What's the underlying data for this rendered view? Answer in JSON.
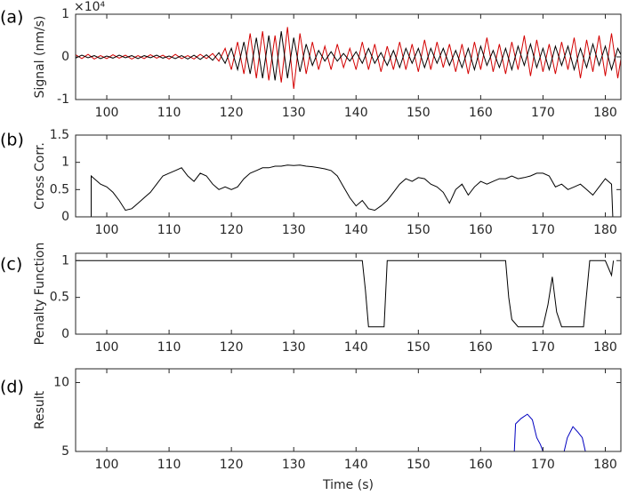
{
  "chart_data": [
    {
      "type": "line",
      "panel_label": "(a)",
      "ylabel": "Signal (nm/s)",
      "y_multiplier": "×10⁴",
      "xlim": [
        95,
        182.5
      ],
      "xticks": [
        100,
        110,
        120,
        130,
        140,
        150,
        160,
        170,
        180
      ],
      "ylim": [
        -1,
        1
      ],
      "yticks": [
        -1,
        0,
        1
      ],
      "x": [
        95,
        96,
        97,
        98,
        99,
        100,
        101,
        102,
        103,
        104,
        105,
        106,
        107,
        108,
        109,
        110,
        111,
        112,
        113,
        114,
        115,
        116,
        117,
        118,
        119,
        120,
        121,
        122,
        123,
        124,
        125,
        126,
        127,
        128,
        129,
        130,
        131,
        132,
        133,
        134,
        135,
        136,
        137,
        138,
        139,
        140,
        141,
        142,
        143,
        144,
        145,
        146,
        147,
        148,
        149,
        150,
        151,
        152,
        153,
        154,
        155,
        156,
        157,
        158,
        159,
        160,
        161,
        162,
        163,
        164,
        165,
        166,
        167,
        168,
        169,
        170,
        171,
        172,
        173,
        174,
        175,
        176,
        177,
        178,
        179,
        180,
        181,
        182,
        183
      ],
      "series": [
        {
          "color": "#d40000",
          "values": [
            0.05,
            -0.04,
            0.06,
            -0.05,
            0.03,
            -0.04,
            0.05,
            -0.03,
            0.04,
            -0.05,
            0.03,
            -0.04,
            0.05,
            -0.03,
            0.04,
            -0.05,
            0.06,
            -0.04,
            0.03,
            -0.05,
            0.06,
            -0.04,
            0.08,
            -0.1,
            0.2,
            -0.3,
            0.35,
            -0.4,
            0.55,
            -0.5,
            0.6,
            -0.55,
            0.5,
            -0.6,
            0.7,
            -0.75,
            0.55,
            -0.4,
            0.35,
            -0.3,
            0.25,
            -0.3,
            0.3,
            -0.25,
            0.2,
            -0.3,
            0.35,
            -0.3,
            0.3,
            -0.35,
            0.25,
            -0.3,
            0.35,
            -0.3,
            0.3,
            -0.35,
            0.4,
            -0.3,
            0.35,
            -0.25,
            0.3,
            -0.35,
            0.3,
            -0.4,
            0.35,
            -0.3,
            0.45,
            -0.35,
            0.3,
            -0.4,
            0.35,
            -0.3,
            0.5,
            -0.45,
            0.4,
            -0.35,
            0.3,
            -0.4,
            0.35,
            -0.3,
            0.45,
            -0.5,
            0.4,
            -0.35,
            0.5,
            -0.45,
            0.55,
            -0.5,
            0.4
          ]
        },
        {
          "color": "#000000",
          "values": [
            -0.03,
            0.04,
            -0.02,
            0.03,
            -0.04,
            0.02,
            -0.03,
            0.04,
            -0.02,
            0.03,
            -0.04,
            0.03,
            -0.02,
            0.04,
            -0.03,
            0.02,
            -0.04,
            0.03,
            -0.05,
            0.04,
            -0.06,
            0.05,
            -0.08,
            0.1,
            -0.15,
            0.2,
            -0.3,
            0.35,
            -0.4,
            0.45,
            -0.5,
            0.5,
            -0.55,
            0.6,
            -0.5,
            0.45,
            -0.35,
            0.3,
            -0.2,
            0.15,
            -0.1,
            0.12,
            -0.1,
            0.08,
            -0.1,
            0.12,
            -0.15,
            0.2,
            -0.15,
            0.1,
            -0.2,
            0.15,
            -0.25,
            0.2,
            -0.15,
            0.2,
            -0.25,
            0.2,
            -0.15,
            0.2,
            -0.2,
            0.15,
            -0.25,
            0.2,
            -0.3,
            0.25,
            -0.2,
            0.15,
            -0.25,
            0.2,
            -0.3,
            0.25,
            -0.2,
            0.3,
            -0.25,
            0.2,
            -0.3,
            0.25,
            -0.2,
            0.25,
            -0.3,
            0.2,
            -0.25,
            0.3,
            -0.2,
            0.25,
            -0.3,
            0.2,
            -0.1
          ]
        }
      ]
    },
    {
      "type": "line",
      "panel_label": "(b)",
      "ylabel": "Cross Corr.",
      "xlim": [
        95,
        182.5
      ],
      "xticks": [
        100,
        110,
        120,
        130,
        140,
        150,
        160,
        170,
        180
      ],
      "ylim": [
        0,
        1.5
      ],
      "yticks": [
        0,
        0.5,
        1,
        1.5
      ],
      "x": [
        97.5,
        97.5,
        98,
        99,
        100,
        101,
        102,
        103,
        104,
        105,
        106,
        107,
        108,
        109,
        110,
        111,
        112,
        113,
        114,
        115,
        116,
        117,
        118,
        119,
        120,
        121,
        122,
        123,
        124,
        125,
        126,
        127,
        128,
        129,
        130,
        131,
        132,
        133,
        134,
        135,
        136,
        137,
        138,
        139,
        140,
        141,
        142,
        143,
        144,
        145,
        146,
        147,
        148,
        149,
        150,
        151,
        152,
        153,
        154,
        155,
        156,
        157,
        158,
        159,
        160,
        161,
        162,
        163,
        164,
        165,
        166,
        167,
        168,
        169,
        170,
        171,
        172,
        173,
        174,
        175,
        176,
        177,
        178,
        179,
        180,
        181,
        181.2
      ],
      "series": [
        {
          "color": "#000000",
          "values": [
            0,
            0.75,
            0.7,
            0.6,
            0.55,
            0.45,
            0.3,
            0.12,
            0.15,
            0.25,
            0.35,
            0.45,
            0.6,
            0.75,
            0.8,
            0.85,
            0.9,
            0.75,
            0.65,
            0.8,
            0.75,
            0.6,
            0.5,
            0.55,
            0.5,
            0.55,
            0.7,
            0.8,
            0.85,
            0.9,
            0.9,
            0.93,
            0.93,
            0.95,
            0.94,
            0.95,
            0.93,
            0.92,
            0.9,
            0.88,
            0.85,
            0.75,
            0.55,
            0.35,
            0.2,
            0.3,
            0.15,
            0.12,
            0.2,
            0.3,
            0.45,
            0.6,
            0.7,
            0.65,
            0.72,
            0.7,
            0.6,
            0.55,
            0.45,
            0.25,
            0.5,
            0.6,
            0.4,
            0.55,
            0.65,
            0.6,
            0.65,
            0.7,
            0.7,
            0.75,
            0.7,
            0.72,
            0.75,
            0.8,
            0.8,
            0.75,
            0.55,
            0.6,
            0.5,
            0.55,
            0.6,
            0.5,
            0.4,
            0.55,
            0.7,
            0.6,
            0
          ]
        }
      ]
    },
    {
      "type": "line",
      "panel_label": "(c)",
      "ylabel": "Penalty Function",
      "xlim": [
        95,
        182.5
      ],
      "xticks": [
        100,
        110,
        120,
        130,
        140,
        150,
        160,
        170,
        180
      ],
      "ylim": [
        0,
        1.1
      ],
      "yticks": [
        0,
        0.5,
        1
      ],
      "x": [
        95,
        141,
        141.5,
        142,
        144.5,
        145,
        164,
        164.5,
        165,
        166,
        170,
        170.8,
        171.5,
        172.2,
        173,
        176.5,
        177.5,
        180,
        180.5,
        181,
        181.3
      ],
      "series": [
        {
          "color": "#000000",
          "values": [
            1,
            1,
            0.6,
            0.1,
            0.1,
            1,
            1,
            0.5,
            0.2,
            0.1,
            0.1,
            0.4,
            0.78,
            0.3,
            0.1,
            0.1,
            1,
            1,
            0.9,
            0.8,
            1
          ]
        }
      ]
    },
    {
      "type": "line",
      "panel_label": "(d)",
      "ylabel": "Result",
      "xlabel": "Time (s)",
      "xlim": [
        95,
        182.5
      ],
      "xticks": [
        100,
        110,
        120,
        130,
        140,
        150,
        160,
        170,
        180
      ],
      "ylim": [
        5,
        11
      ],
      "yticks": [
        5,
        10
      ],
      "x": [
        165.4,
        165.6,
        166.5,
        167.5,
        168.3,
        169,
        169.6,
        170,
        172,
        173.4,
        173.9,
        174.8,
        175.6,
        176.3,
        176.8
      ],
      "series": [
        {
          "color": "#0000c0",
          "values": [
            5,
            7,
            7.4,
            7.7,
            7.3,
            6,
            5.5,
            5,
            null,
            5,
            6,
            6.8,
            6.4,
            6,
            5
          ]
        }
      ]
    }
  ]
}
